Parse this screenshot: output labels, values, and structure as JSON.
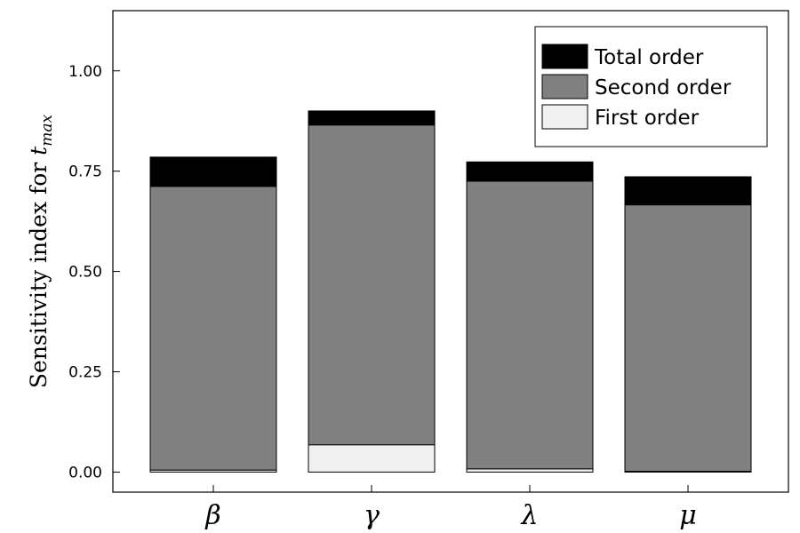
{
  "chart_data": {
    "type": "bar",
    "stacked": true,
    "categories": [
      "β",
      "γ",
      "λ",
      "μ"
    ],
    "series": [
      {
        "name": "First order",
        "color": "#f0f0f0",
        "values": [
          0.005,
          0.068,
          0.008,
          0.002
        ]
      },
      {
        "name": "Second order",
        "color": "#808080",
        "values": [
          0.707,
          0.797,
          0.717,
          0.664
        ]
      },
      {
        "name": "Total order",
        "color": "#000000",
        "values": [
          0.073,
          0.035,
          0.048,
          0.07
        ]
      }
    ],
    "legend_order": [
      "Total order",
      "Second order",
      "First order"
    ],
    "legend_position": "top-right",
    "ylabel_main": "Sensitivity index for ",
    "ylabel_var": "t",
    "ylabel_sub": "max",
    "ylim": [
      -0.05,
      1.15
    ],
    "yticks": [
      0.0,
      0.25,
      0.5,
      0.75,
      1.0
    ],
    "ytick_labels": [
      "0.00",
      "0.25",
      "0.50",
      "0.75",
      "1.00"
    ],
    "grid": false
  }
}
